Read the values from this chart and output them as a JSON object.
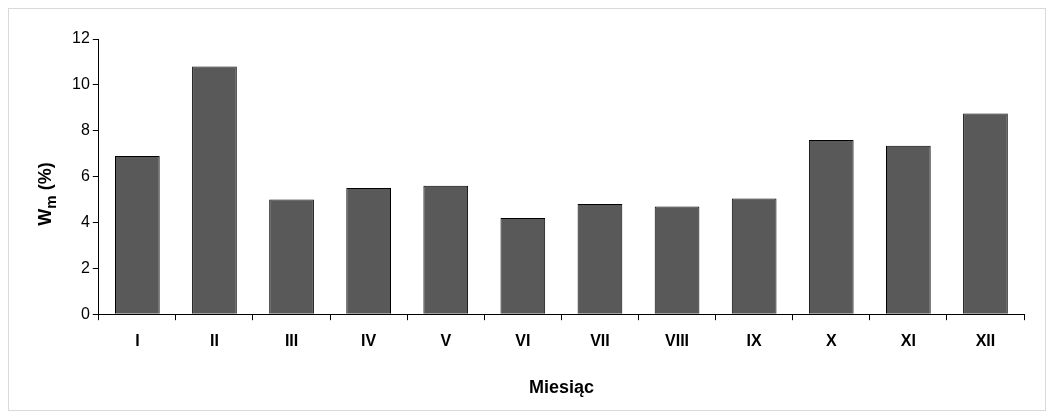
{
  "chart_data": {
    "type": "bar",
    "xlabel": "Miesiąc",
    "ylabel": "W$_{m}$ (%)",
    "categories": [
      "I",
      "II",
      "III",
      "IV",
      "V",
      "VI",
      "VII",
      "VIII",
      "IX",
      "X",
      "XI",
      "XII"
    ],
    "values": [
      6.9,
      10.8,
      5.0,
      5.5,
      5.6,
      4.2,
      4.8,
      4.7,
      5.05,
      7.6,
      7.35,
      8.75
    ],
    "color": "#595959",
    "ylim": [
      0,
      12
    ],
    "yticks": [
      0,
      2,
      4,
      6,
      8,
      10,
      12
    ]
  }
}
